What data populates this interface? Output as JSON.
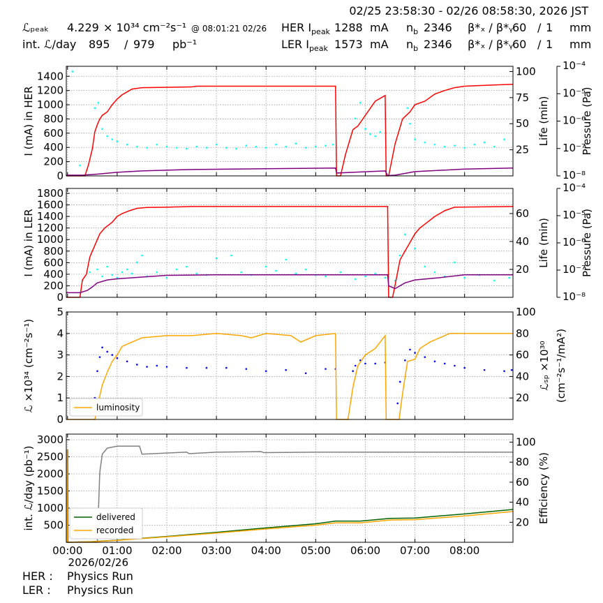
{
  "header": {
    "time_range": "02/25 23:58:30 - 02/26 08:58:30, 2026 JST",
    "lpeak_label": "ℒₚₑₐₖ",
    "lpeak_value": 4.229,
    "lpeak_unit": "× 10³⁴ cm⁻²s⁻¹",
    "lpeak_time": "@ 08:01:21 02/26",
    "intl_label": "int. ℒ/day",
    "intl_value1": 895,
    "intl_sep": "/",
    "intl_value2": 979,
    "intl_unit": "pb⁻¹",
    "rings": [
      {
        "label": "HER I",
        "label_sub": "peak",
        "current": 1288,
        "current_unit": "mA",
        "nb_label": "n",
        "nb_sub": "b",
        "nb": 2346,
        "beta_label": "β*ₓ / β*ᵧ",
        "beta_x": 60,
        "beta_sep": "/",
        "beta_y": 1,
        "beta_unit": "mm"
      },
      {
        "label": "LER I",
        "label_sub": "peak",
        "current": 1573,
        "current_unit": "mA",
        "nb_label": "n",
        "nb_sub": "b",
        "nb": 2346,
        "beta_label": "β*ₓ / β*ᵧ",
        "beta_x": 60,
        "beta_sep": "/",
        "beta_y": 1,
        "beta_unit": "mm"
      }
    ]
  },
  "chart_data": [
    {
      "type": "line",
      "ylabel": "I (mA) in HER",
      "y2label": "Life (min)",
      "y3label": "Pressure (Pa)",
      "grid": true,
      "xlim": [
        -0.025,
        8.975
      ],
      "xticks": [
        0,
        1,
        2,
        3,
        4,
        5,
        6,
        7,
        8
      ],
      "ylim": [
        0,
        1540
      ],
      "yticks": [
        0,
        200,
        400,
        600,
        800,
        1000,
        1200,
        1400
      ],
      "y2lim": [
        0,
        105
      ],
      "y2ticks": [
        25,
        50,
        75,
        100
      ],
      "y3lim": [
        1e-08,
        0.0001
      ],
      "y3log": true,
      "y3ticks": [
        {
          "value": 1e-08,
          "label": "10⁻⁸"
        },
        {
          "value": 1e-07,
          "label": "10⁻⁷"
        },
        {
          "value": 1e-06,
          "label": "10⁻⁶"
        },
        {
          "value": 1e-05,
          "label": "10⁻⁵"
        },
        {
          "value": 0.0001,
          "label": "10⁻⁴"
        }
      ],
      "series": [
        {
          "kind": "scatter",
          "axis": "y2",
          "color": "cyan",
          "x": [
            0.1,
            0.25,
            0.55,
            0.62,
            0.7,
            0.8,
            0.9,
            1.0,
            1.2,
            1.4,
            1.6,
            1.8,
            2.0,
            2.2,
            2.4,
            2.6,
            2.8,
            3.0,
            3.2,
            3.4,
            3.6,
            3.8,
            4.0,
            4.2,
            4.4,
            4.6,
            4.8,
            5.0,
            5.2,
            5.35,
            5.8,
            5.9,
            6.0,
            6.1,
            6.2,
            6.3,
            6.85,
            6.9,
            7.0,
            7.2,
            7.4,
            7.6,
            7.8,
            8.0,
            8.2,
            8.4,
            8.6,
            8.8
          ],
          "values": [
            100,
            10,
            65,
            70,
            45,
            38,
            35,
            33,
            30,
            28,
            27,
            30,
            28,
            27,
            26,
            28,
            27,
            30,
            27,
            26,
            29,
            28,
            27,
            30,
            28,
            31,
            27,
            28,
            29,
            30,
            55,
            70,
            45,
            40,
            38,
            42,
            65,
            50,
            35,
            32,
            30,
            28,
            29,
            27,
            30,
            32,
            28,
            35
          ]
        },
        {
          "kind": "line",
          "color": "red",
          "x": [
            -0.025,
            0.35,
            0.42,
            0.5,
            0.55,
            0.6,
            0.65,
            0.7,
            0.8,
            0.9,
            1.0,
            1.1,
            1.2,
            1.3,
            1.5,
            2.5,
            2.6,
            5.4,
            5.42,
            5.5,
            5.6,
            5.75,
            5.85,
            6.0,
            6.1,
            6.2,
            6.4,
            6.42,
            6.47,
            6.6,
            6.75,
            6.9,
            7.0,
            7.2,
            7.4,
            7.6,
            7.8,
            8.0,
            8.5,
            8.975
          ],
          "values": [
            0,
            0,
            150,
            380,
            620,
            720,
            800,
            850,
            900,
            1000,
            1080,
            1140,
            1180,
            1220,
            1240,
            1250,
            1260,
            1260,
            0,
            0,
            300,
            650,
            700,
            850,
            950,
            1050,
            1130,
            0,
            0,
            450,
            800,
            900,
            1000,
            1050,
            1150,
            1200,
            1240,
            1260,
            1275,
            1288
          ]
        },
        {
          "kind": "line",
          "color": "purple",
          "x": [
            -0.025,
            0.3,
            0.6,
            1.0,
            1.5,
            2.5,
            4,
            5.4,
            5.42,
            6.4,
            6.45,
            6.6,
            7,
            8,
            8.975
          ],
          "values": [
            10,
            10,
            25,
            50,
            70,
            90,
            100,
            110,
            40,
            70,
            5,
            10,
            60,
            95,
            110
          ]
        }
      ]
    },
    {
      "type": "line",
      "ylabel": "I (mA) in LER",
      "y2label": "Life (min)",
      "y3label": "Pressure (Pa)",
      "grid": true,
      "xlim": [
        -0.025,
        8.975
      ],
      "xticks": [
        0,
        1,
        2,
        3,
        4,
        5,
        6,
        7,
        8
      ],
      "ylim": [
        0,
        1885
      ],
      "yticks": [
        0,
        200,
        400,
        600,
        800,
        1000,
        1200,
        1400,
        1600,
        1800
      ],
      "y2lim": [
        0,
        78
      ],
      "y2ticks": [
        20,
        40,
        60
      ],
      "y3lim": [
        1e-08,
        0.0001
      ],
      "y3log": true,
      "y3ticks": [
        {
          "value": 1e-08,
          "label": "10⁻⁸"
        },
        {
          "value": 1e-07,
          "label": "10⁻⁷"
        },
        {
          "value": 1e-06,
          "label": "10⁻⁶"
        },
        {
          "value": 1e-05,
          "label": "10⁻⁵"
        },
        {
          "value": 0.0001,
          "label": "10⁻⁴"
        }
      ],
      "series": [
        {
          "kind": "scatter",
          "axis": "y2",
          "color": "cyan",
          "x": [
            0.3,
            0.45,
            0.6,
            0.7,
            0.8,
            0.9,
            1.0,
            1.1,
            1.2,
            1.3,
            1.4,
            1.5,
            1.6,
            1.8,
            2.0,
            2.2,
            2.4,
            2.6,
            2.8,
            3.0,
            3.3,
            3.5,
            3.7,
            4.0,
            4.2,
            4.4,
            4.6,
            4.8,
            5.0,
            5.2,
            5.5,
            5.8,
            6.0,
            6.2,
            6.4,
            6.6,
            6.7,
            6.8,
            7.0,
            7.2,
            7.4,
            7.6,
            7.8,
            8.0,
            8.3,
            8.6,
            8.9
          ],
          "values": [
            12,
            18,
            20,
            15,
            22,
            16,
            14,
            18,
            20,
            17,
            25,
            30,
            15,
            18,
            14,
            20,
            22,
            17,
            16,
            28,
            30,
            18,
            16,
            22,
            19,
            27,
            17,
            20,
            16,
            15,
            18,
            13,
            15,
            17,
            14,
            12,
            30,
            45,
            35,
            22,
            18,
            15,
            25,
            14,
            16,
            12,
            14
          ]
        },
        {
          "kind": "line",
          "color": "red",
          "x": [
            -0.025,
            0.25,
            0.3,
            0.38,
            0.45,
            0.55,
            0.65,
            0.75,
            0.9,
            1.0,
            1.1,
            1.25,
            1.4,
            1.6,
            2.0,
            2.5,
            6.45,
            6.47,
            6.55,
            6.62,
            6.7,
            6.8,
            6.9,
            7.0,
            7.1,
            7.25,
            7.4,
            7.6,
            7.8,
            8.975
          ],
          "values": [
            0,
            0,
            300,
            400,
            700,
            900,
            1100,
            1200,
            1300,
            1400,
            1450,
            1500,
            1540,
            1555,
            1560,
            1573,
            1573,
            0,
            0,
            300,
            650,
            800,
            950,
            1100,
            1200,
            1300,
            1400,
            1500,
            1560,
            1573
          ]
        },
        {
          "kind": "line",
          "color": "purple",
          "x": [
            -0.025,
            0.25,
            0.4,
            0.5,
            0.6,
            0.8,
            1.0,
            1.5,
            2.0,
            3.0,
            6.45,
            6.47,
            6.6,
            6.8,
            7.0,
            7.5,
            8.0,
            8.975
          ],
          "values": [
            80,
            80,
            120,
            180,
            250,
            300,
            320,
            350,
            380,
            390,
            390,
            200,
            150,
            250,
            300,
            340,
            390,
            390
          ]
        }
      ]
    },
    {
      "type": "line",
      "ylabel": "ℒ ×10³⁴ (cm⁻²s⁻¹)",
      "y2label": [
        "ℒₛₚ ×10³⁰",
        "(cm⁻²s⁻¹/mA²)"
      ],
      "grid": true,
      "legend": "lower left",
      "xlim": [
        -0.025,
        8.975
      ],
      "xticks": [
        0,
        1,
        2,
        3,
        4,
        5,
        6,
        7,
        8
      ],
      "ylim": [
        0,
        5
      ],
      "yticks": [
        0,
        1,
        2,
        3,
        4,
        5
      ],
      "y2lim": [
        0,
        100
      ],
      "y2ticks": [
        20,
        40,
        60,
        80,
        100
      ],
      "series": [
        {
          "kind": "scatter",
          "axis": "y2",
          "color": "blue",
          "x": [
            0.55,
            0.6,
            0.65,
            0.7,
            0.8,
            0.9,
            1.0,
            1.2,
            1.4,
            1.6,
            1.8,
            2.0,
            2.4,
            2.8,
            3.2,
            3.6,
            4.0,
            4.4,
            4.8,
            5.2,
            5.4,
            5.75,
            5.8,
            5.9,
            6.0,
            6.2,
            6.4,
            6.65,
            6.7,
            6.8,
            6.9,
            7.0,
            7.2,
            7.4,
            7.6,
            7.8,
            8.0,
            8.4,
            8.8,
            8.95
          ],
          "values": [
            20,
            45,
            58,
            67,
            63,
            60,
            57,
            54,
            51,
            49,
            50,
            49,
            48,
            48,
            48,
            47,
            45,
            46,
            43,
            47,
            47,
            45,
            50,
            55,
            52,
            52,
            53,
            15,
            35,
            55,
            65,
            62,
            58,
            54,
            52,
            50,
            48,
            46,
            45,
            46
          ]
        },
        {
          "kind": "line",
          "name": "luminosity",
          "color": "orange",
          "x": [
            -0.025,
            0.55,
            0.62,
            0.7,
            0.8,
            0.9,
            1.0,
            1.1,
            1.3,
            1.5,
            2.0,
            2.5,
            3.0,
            3.5,
            3.7,
            4.0,
            4.5,
            4.7,
            5.0,
            5.4,
            5.42,
            5.65,
            5.75,
            5.85,
            6.0,
            6.2,
            6.4,
            6.42,
            6.68,
            6.75,
            6.85,
            7.0,
            7.1,
            7.3,
            7.5,
            7.7,
            8.0,
            8.5,
            8.975
          ],
          "values": [
            0,
            0,
            0.8,
            1.6,
            2.2,
            2.7,
            3.0,
            3.4,
            3.6,
            3.8,
            3.9,
            3.9,
            4.0,
            3.9,
            3.8,
            4.0,
            3.9,
            3.6,
            3.9,
            4.0,
            0,
            0,
            1.5,
            2.5,
            3.0,
            3.3,
            3.9,
            0,
            0,
            1.2,
            2.7,
            2.8,
            3.3,
            3.6,
            3.8,
            4.0,
            4.0,
            4.0,
            4.0
          ]
        }
      ]
    },
    {
      "type": "line",
      "ylabel": "int. ℒ/day (pb⁻¹)",
      "y2label": "Efficiency (%)",
      "grid": true,
      "legend": "lower left",
      "xlim": [
        -0.025,
        8.975
      ],
      "xticks": [
        {
          "value": 0,
          "label": "00:00"
        },
        {
          "value": 1,
          "label": "01:00"
        },
        {
          "value": 2,
          "label": "02:00"
        },
        {
          "value": 3,
          "label": "03:00"
        },
        {
          "value": 4,
          "label": "04:00"
        },
        {
          "value": 5,
          "label": "05:00"
        },
        {
          "value": 6,
          "label": "06:00"
        },
        {
          "value": 7,
          "label": "07:00"
        },
        {
          "value": 8,
          "label": "08:00"
        }
      ],
      "x_sublabel": "2026/02/26",
      "ylim": [
        0,
        3164
      ],
      "yticks": [
        500,
        1000,
        1500,
        2000,
        2500,
        3000
      ],
      "y2lim": [
        0,
        108
      ],
      "y2ticks": [
        20,
        40,
        60,
        80,
        100
      ],
      "series": [
        {
          "kind": "line",
          "axis": "y2",
          "color": "gray",
          "x": [
            -0.025,
            0.005,
            0.01,
            0.6,
            0.65,
            0.7,
            0.8,
            1.0,
            1.45,
            1.5,
            2.4,
            2.45,
            3.0,
            3.9,
            3.95,
            5.0,
            8.975
          ],
          "values": [
            92,
            92,
            0,
            0,
            70,
            88,
            94,
            96,
            96,
            88,
            90,
            88.5,
            90,
            90.5,
            89.5,
            90,
            90
          ]
        },
        {
          "kind": "line",
          "name": "delivered",
          "color": "darkgreen",
          "x": [
            -0.025,
            0.5,
            1.0,
            2.0,
            3.0,
            4.0,
            5.0,
            5.4,
            5.9,
            6.5,
            7.0,
            8.0,
            8.975
          ],
          "values": [
            0,
            20,
            60,
            170,
            290,
            420,
            540,
            620,
            620,
            700,
            710,
            830,
            960
          ]
        },
        {
          "kind": "line",
          "name": "recorded",
          "color": "orange",
          "x": [
            -0.025,
            -0.015,
            -0.005,
            0.5,
            1.0,
            2.0,
            3.0,
            4.0,
            5.0,
            5.4,
            5.9,
            6.5,
            7.0,
            8.0,
            8.975
          ],
          "values": [
            2700,
            2700,
            0,
            18,
            55,
            160,
            270,
            390,
            500,
            570,
            570,
            650,
            660,
            770,
            900
          ]
        }
      ]
    }
  ],
  "footer": [
    {
      "ring": "HER :",
      "mode": "Physics Run"
    },
    {
      "ring": "LER :",
      "mode": "Physics Run"
    }
  ]
}
